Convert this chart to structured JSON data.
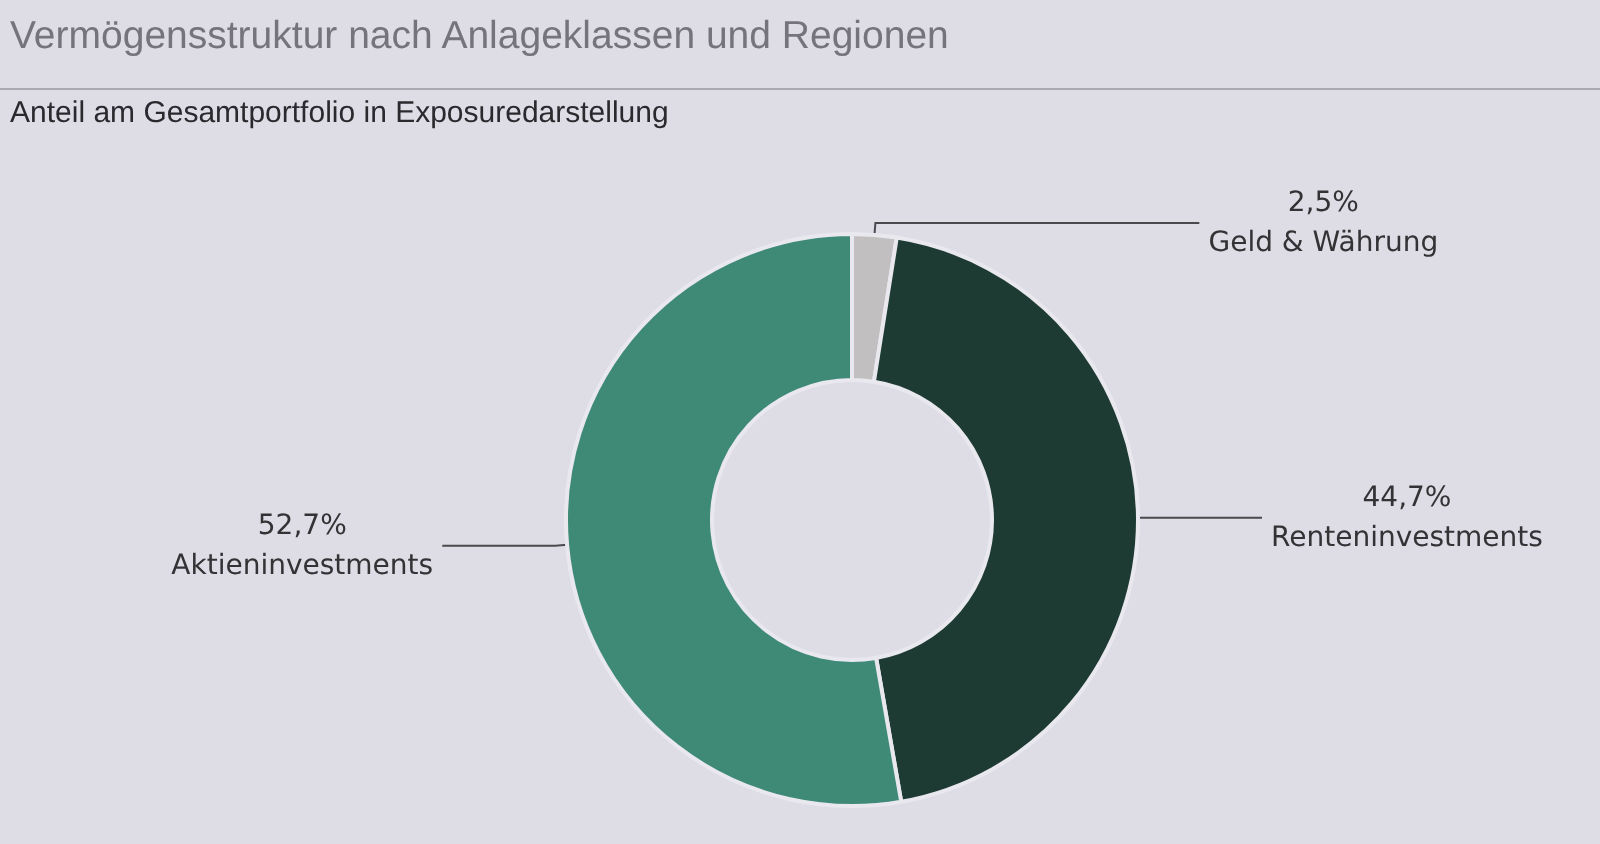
{
  "chart_data": {
    "type": "donut",
    "title": "Vermögensstruktur nach Anlageklassen und Regionen",
    "subtitle": "Anteil am Gesamtportfolio in Exposuredarstellung",
    "categories": [
      "Geld & Währung",
      "Renteninvestments",
      "Aktieninvestments"
    ],
    "values": [
      2.5,
      44.7,
      52.7
    ],
    "value_labels": [
      "2,5%",
      "44,7%",
      "52,7%"
    ],
    "colors": [
      "#c2bfc0",
      "#1e3b33",
      "#3f8a77"
    ]
  }
}
